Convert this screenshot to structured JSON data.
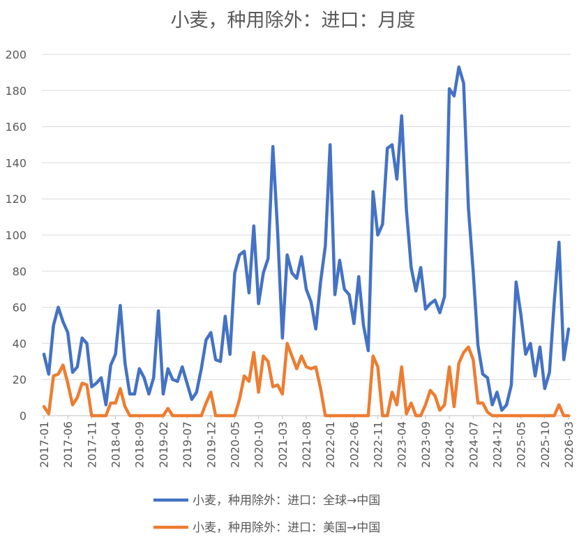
{
  "chart_data": {
    "type": "line",
    "title": "小麦，种用除外：进口：月度",
    "ylim": [
      0,
      200
    ],
    "y_ticks": [
      0,
      20,
      40,
      60,
      80,
      100,
      120,
      140,
      160,
      180,
      200
    ],
    "x_start": "2017-01",
    "x_tick_labels": [
      "2017-01",
      "2017-06",
      "2017-11",
      "2018-04",
      "2018-09",
      "2019-02",
      "2019-07",
      "2019-12",
      "2020-05",
      "2020-10",
      "2021-03",
      "2021-08",
      "2022-01",
      "2022-06",
      "2022-11",
      "2023-04",
      "2023-09",
      "2024-02",
      "2024-07",
      "2024-12",
      "2025-05",
      "2025-10",
      "2026-03"
    ],
    "grid": "horizontal",
    "legend_position": "bottom",
    "series": [
      {
        "name": "小麦，种用除外：进口：全球→中国",
        "color": "#4472C4",
        "values": [
          34,
          23,
          50,
          60,
          52,
          46,
          24,
          27,
          43,
          40,
          16,
          18,
          21,
          6,
          28,
          34,
          61,
          29,
          12,
          12,
          26,
          21,
          12,
          21,
          58,
          12,
          26,
          20,
          19,
          27,
          18,
          9,
          13,
          26,
          42,
          46,
          31,
          30,
          55,
          34,
          79,
          89,
          91,
          68,
          105,
          62,
          79,
          87,
          149,
          102,
          43,
          89,
          79,
          76,
          88,
          70,
          63,
          48,
          74,
          94,
          150,
          67,
          86,
          70,
          67,
          51,
          77,
          50,
          36,
          124,
          100,
          106,
          148,
          150,
          131,
          166,
          114,
          82,
          69,
          82,
          59,
          62,
          64,
          57,
          66,
          181,
          177,
          193,
          184,
          115,
          80,
          39,
          23,
          21,
          6,
          13,
          3,
          6,
          17,
          74,
          56,
          34,
          40,
          22,
          38,
          15,
          24,
          63,
          96,
          31,
          48
        ]
      },
      {
        "name": "小麦，种用除外：进口：美国→中国",
        "color": "#ED7D31",
        "values": [
          5,
          1,
          22,
          23,
          28,
          18,
          6,
          10,
          18,
          17,
          0,
          0,
          0,
          0,
          7,
          7,
          15,
          5,
          0,
          0,
          0,
          0,
          0,
          0,
          0,
          0,
          4,
          0,
          0,
          0,
          0,
          0,
          0,
          0,
          7,
          13,
          0,
          0,
          0,
          0,
          0,
          9,
          22,
          19,
          35,
          13,
          33,
          30,
          16,
          17,
          12,
          40,
          33,
          26,
          33,
          27,
          26,
          27,
          15,
          0,
          0,
          0,
          0,
          0,
          0,
          0,
          0,
          0,
          0,
          33,
          27,
          0,
          0,
          13,
          6,
          27,
          1,
          7,
          0,
          0,
          6,
          14,
          11,
          3,
          6,
          27,
          5,
          29,
          35,
          38,
          31,
          7,
          7,
          2,
          0,
          0,
          0,
          0,
          0,
          0,
          0,
          0,
          0,
          0,
          0,
          0,
          0,
          0,
          6,
          0,
          0
        ]
      }
    ]
  }
}
